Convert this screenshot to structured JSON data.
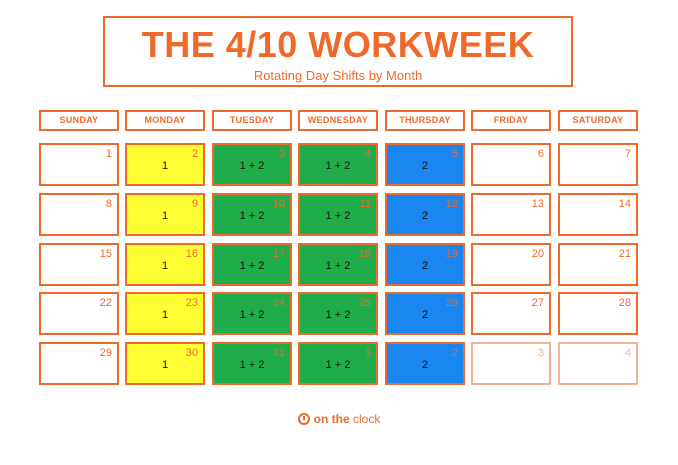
{
  "header": {
    "title": "THE 4/10 WORKWEEK",
    "subtitle": "Rotating Day Shifts by Month"
  },
  "days": [
    "SUNDAY",
    "MONDAY",
    "TUESDAY",
    "WEDNESDAY",
    "THURSDAY",
    "FRIDAY",
    "SATURDAY"
  ],
  "colors": {
    "accent": "#ef6a2a",
    "shift_1": "#ffff33",
    "shift_1_2": "#1fad4b",
    "shift_2": "#1a86f0"
  },
  "weeks": [
    [
      {
        "date": "1",
        "shift": ""
      },
      {
        "date": "2",
        "shift": "1"
      },
      {
        "date": "3",
        "shift": "1 + 2"
      },
      {
        "date": "4",
        "shift": "1 + 2"
      },
      {
        "date": "5",
        "shift": "2"
      },
      {
        "date": "6",
        "shift": ""
      },
      {
        "date": "7",
        "shift": ""
      }
    ],
    [
      {
        "date": "8",
        "shift": ""
      },
      {
        "date": "9",
        "shift": "1"
      },
      {
        "date": "10",
        "shift": "1 + 2"
      },
      {
        "date": "11",
        "shift": "1 + 2"
      },
      {
        "date": "12",
        "shift": "2"
      },
      {
        "date": "13",
        "shift": ""
      },
      {
        "date": "14",
        "shift": ""
      }
    ],
    [
      {
        "date": "15",
        "shift": ""
      },
      {
        "date": "16",
        "shift": "1"
      },
      {
        "date": "17",
        "shift": "1 + 2"
      },
      {
        "date": "18",
        "shift": "1 + 2"
      },
      {
        "date": "19",
        "shift": "2"
      },
      {
        "date": "20",
        "shift": ""
      },
      {
        "date": "21",
        "shift": ""
      }
    ],
    [
      {
        "date": "22",
        "shift": ""
      },
      {
        "date": "23",
        "shift": "1"
      },
      {
        "date": "24",
        "shift": "1 + 2"
      },
      {
        "date": "25",
        "shift": "1 + 2"
      },
      {
        "date": "26",
        "shift": "2"
      },
      {
        "date": "27",
        "shift": ""
      },
      {
        "date": "28",
        "shift": ""
      }
    ],
    [
      {
        "date": "29",
        "shift": ""
      },
      {
        "date": "30",
        "shift": "1"
      },
      {
        "date": "31",
        "shift": "1 + 2"
      },
      {
        "date": "1",
        "shift": "1 + 2"
      },
      {
        "date": "2",
        "shift": "2"
      },
      {
        "date": "3",
        "shift": ""
      },
      {
        "date": "4",
        "shift": ""
      }
    ]
  ],
  "footer": {
    "logo_main": "on the",
    "logo_accent": "clock"
  }
}
